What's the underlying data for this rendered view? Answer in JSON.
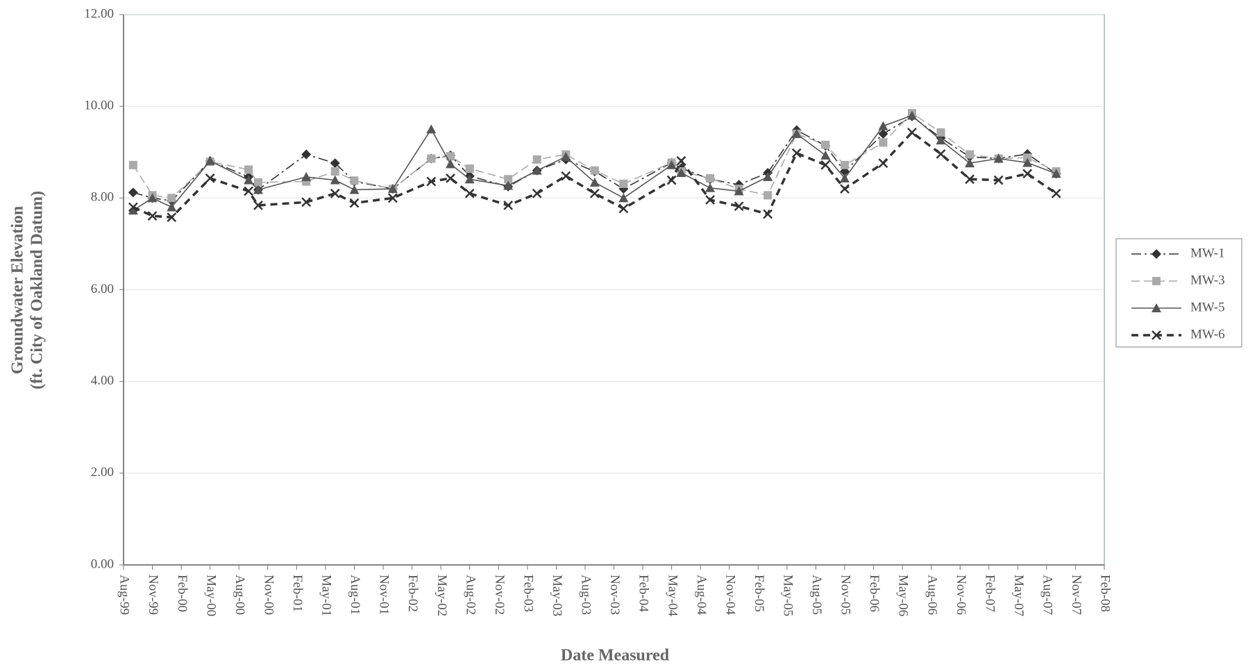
{
  "chart_data": {
    "type": "line",
    "xlabel": "Date Measured",
    "ylabel": [
      "Groundwater Elevation",
      "(ft. City of Oakland Datum)"
    ],
    "x": [
      "1999-09",
      "1999-11",
      "2000-01",
      "2000-05",
      "2000-09",
      "2000-10",
      "2001-03",
      "2001-06",
      "2001-08",
      "2001-12",
      "2002-04",
      "2002-06",
      "2002-08",
      "2002-12",
      "2003-03",
      "2003-06",
      "2003-09",
      "2003-12",
      "2004-05",
      "2004-06",
      "2004-09",
      "2004-12",
      "2005-03",
      "2005-06",
      "2005-09",
      "2005-11",
      "2006-03",
      "2006-06",
      "2006-09",
      "2006-12",
      "2007-03",
      "2007-06",
      "2007-09"
    ],
    "series": [
      {
        "name": "MW-1",
        "color": "#333333",
        "marker": "diamond",
        "dash": "14 5 3 5",
        "values": [
          8.12,
          8.0,
          7.94,
          8.81,
          8.46,
          8.18,
          8.95,
          8.76,
          8.36,
          8.2,
          8.86,
          8.93,
          8.48,
          8.25,
          8.6,
          8.84,
          8.58,
          8.2,
          8.77,
          8.65,
          8.41,
          8.29,
          8.55,
          9.48,
          9.14,
          8.58,
          9.4,
          9.78,
          9.31,
          8.9,
          8.86,
          8.96,
          8.53
        ]
      },
      {
        "name": "MW-3",
        "color": "#aaaaaa",
        "marker": "square",
        "dash": "12 6",
        "values": [
          8.72,
          8.06,
          8.0,
          8.79,
          8.62,
          8.34,
          8.36,
          8.58,
          8.38,
          8.2,
          8.86,
          8.91,
          8.64,
          8.41,
          8.84,
          8.95,
          8.6,
          8.31,
          8.77,
          8.58,
          8.43,
          8.2,
          8.06,
          9.4,
          9.16,
          8.72,
          9.21,
          9.85,
          9.43,
          8.95,
          8.86,
          8.88,
          8.58
        ]
      },
      {
        "name": "MW-5",
        "color": "#555555",
        "marker": "triangle",
        "dash": "none",
        "values": [
          7.73,
          8.0,
          7.8,
          8.81,
          8.39,
          8.18,
          8.46,
          8.39,
          8.18,
          8.2,
          9.5,
          8.74,
          8.41,
          8.27,
          8.6,
          8.9,
          8.34,
          8.0,
          8.72,
          8.55,
          8.22,
          8.15,
          8.46,
          9.4,
          8.93,
          8.43,
          9.57,
          9.8,
          9.26,
          8.76,
          8.86,
          8.77,
          8.53
        ]
      },
      {
        "name": "MW-6",
        "color": "#333333",
        "marker": "x",
        "dash": "10 7",
        "values": [
          7.8,
          7.61,
          7.58,
          8.43,
          8.15,
          7.84,
          7.91,
          8.1,
          7.89,
          8.0,
          8.36,
          8.43,
          8.1,
          7.84,
          8.1,
          8.48,
          8.1,
          7.77,
          8.39,
          8.81,
          7.96,
          7.82,
          7.65,
          8.98,
          8.72,
          8.2,
          8.76,
          9.43,
          8.96,
          8.41,
          8.39,
          8.53,
          8.1
        ]
      }
    ],
    "xlim": [
      "1999-08",
      "2008-02"
    ],
    "xticks": [
      {
        "value": "1999-08",
        "label": "Aug-99"
      },
      {
        "value": "1999-11",
        "label": "Nov-99"
      },
      {
        "value": "2000-02",
        "label": "Feb-00"
      },
      {
        "value": "2000-05",
        "label": "May-00"
      },
      {
        "value": "2000-08",
        "label": "Aug-00"
      },
      {
        "value": "2000-11",
        "label": "Nov-00"
      },
      {
        "value": "2001-02",
        "label": "Feb-01"
      },
      {
        "value": "2001-05",
        "label": "May-01"
      },
      {
        "value": "2001-08",
        "label": "Aug-01"
      },
      {
        "value": "2001-11",
        "label": "Nov-01"
      },
      {
        "value": "2002-02",
        "label": "Feb-02"
      },
      {
        "value": "2002-05",
        "label": "May-02"
      },
      {
        "value": "2002-08",
        "label": "Aug-02"
      },
      {
        "value": "2002-11",
        "label": "Nov-02"
      },
      {
        "value": "2003-02",
        "label": "Feb-03"
      },
      {
        "value": "2003-05",
        "label": "May-03"
      },
      {
        "value": "2003-08",
        "label": "Aug-03"
      },
      {
        "value": "2003-11",
        "label": "Nov-03"
      },
      {
        "value": "2004-02",
        "label": "Feb-04"
      },
      {
        "value": "2004-05",
        "label": "May-04"
      },
      {
        "value": "2004-08",
        "label": "Aug-04"
      },
      {
        "value": "2004-11",
        "label": "Nov-04"
      },
      {
        "value": "2005-02",
        "label": "Feb-05"
      },
      {
        "value": "2005-05",
        "label": "May-05"
      },
      {
        "value": "2005-08",
        "label": "Aug-05"
      },
      {
        "value": "2005-11",
        "label": "Nov-05"
      },
      {
        "value": "2006-02",
        "label": "Feb-06"
      },
      {
        "value": "2006-05",
        "label": "May-06"
      },
      {
        "value": "2006-08",
        "label": "Aug-06"
      },
      {
        "value": "2006-11",
        "label": "Nov-06"
      },
      {
        "value": "2007-02",
        "label": "Feb-07"
      },
      {
        "value": "2007-05",
        "label": "May-07"
      },
      {
        "value": "2007-08",
        "label": "Aug-07"
      },
      {
        "value": "2007-11",
        "label": "Nov-07"
      },
      {
        "value": "2008-02",
        "label": "Feb-08"
      }
    ],
    "ylim": [
      0,
      12
    ],
    "yticks": [
      {
        "value": 0,
        "label": "0.00"
      },
      {
        "value": 2,
        "label": "2.00"
      },
      {
        "value": 4,
        "label": "4.00"
      },
      {
        "value": 6,
        "label": "6.00"
      },
      {
        "value": 8,
        "label": "8.00"
      },
      {
        "value": 10,
        "label": "10.00"
      },
      {
        "value": 12,
        "label": "12.00"
      }
    ],
    "grid": true,
    "legend": "right"
  }
}
